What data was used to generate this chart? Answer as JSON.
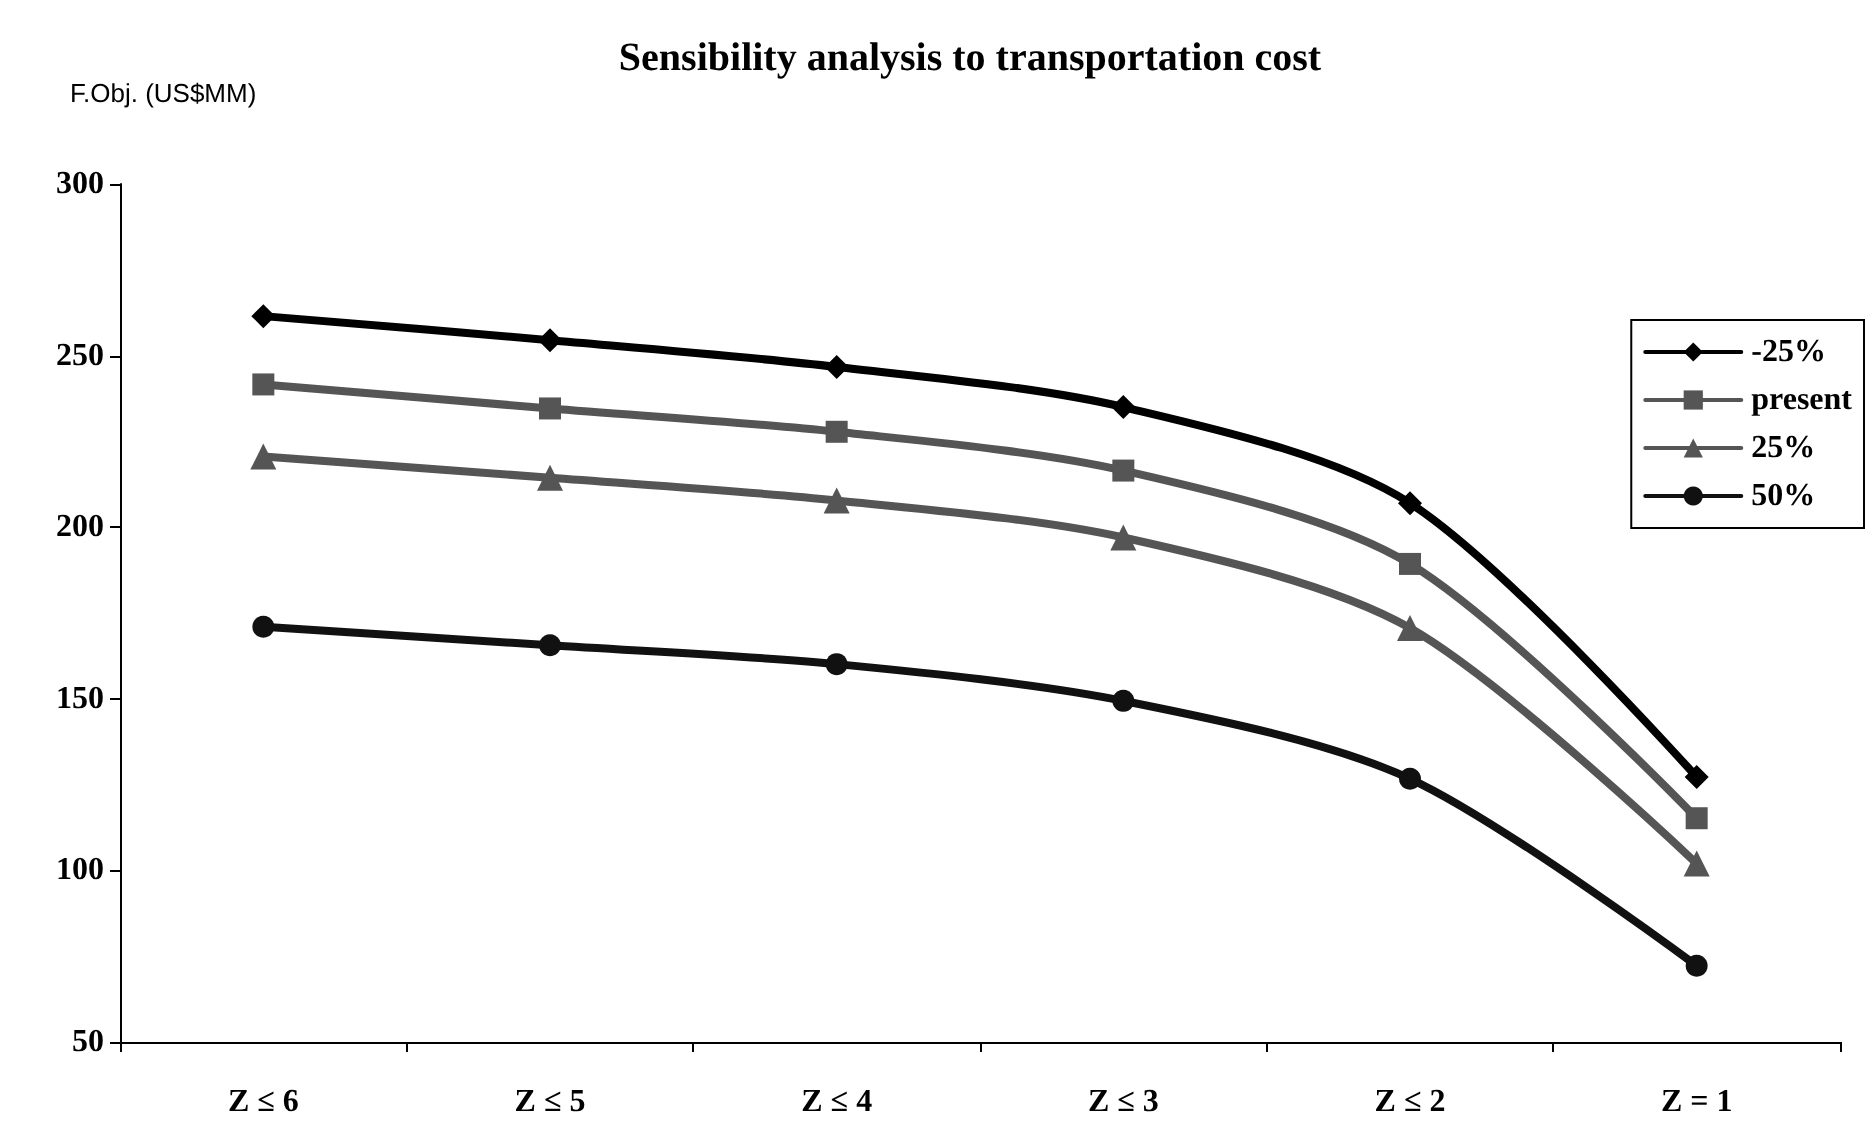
{
  "chart_data": {
    "type": "line",
    "title": "Sensibility analysis to transportation cost",
    "ylabel": "F.Obj. (US$MM)",
    "categories": [
      "Z ≤ 6",
      "Z ≤ 5",
      "Z ≤ 4",
      "Z ≤ 3",
      "Z ≤ 2",
      "Z = 1"
    ],
    "series": [
      {
        "name": "-25%",
        "color": "#000000",
        "marker": "diamond",
        "values": [
          261.5,
          254.5,
          246.7,
          235,
          207,
          127.2
        ]
      },
      {
        "name": "present",
        "color": "#555555",
        "marker": "square",
        "values": [
          241.6,
          234.6,
          227.8,
          216.5,
          189.3,
          115.2
        ]
      },
      {
        "name": "25%",
        "color": "#555555",
        "marker": "triangle",
        "values": [
          220.6,
          214.4,
          207.8,
          197,
          170.6,
          102
        ]
      },
      {
        "name": "50%",
        "color": "#111111",
        "marker": "circle",
        "values": [
          171,
          165.6,
          160.1,
          149.4,
          126.7,
          72.2
        ]
      }
    ],
    "ylim": [
      50,
      300
    ],
    "yticks": [
      50,
      100,
      150,
      200,
      250,
      300
    ],
    "grid": false,
    "legend": "right",
    "line_style": "solid"
  }
}
